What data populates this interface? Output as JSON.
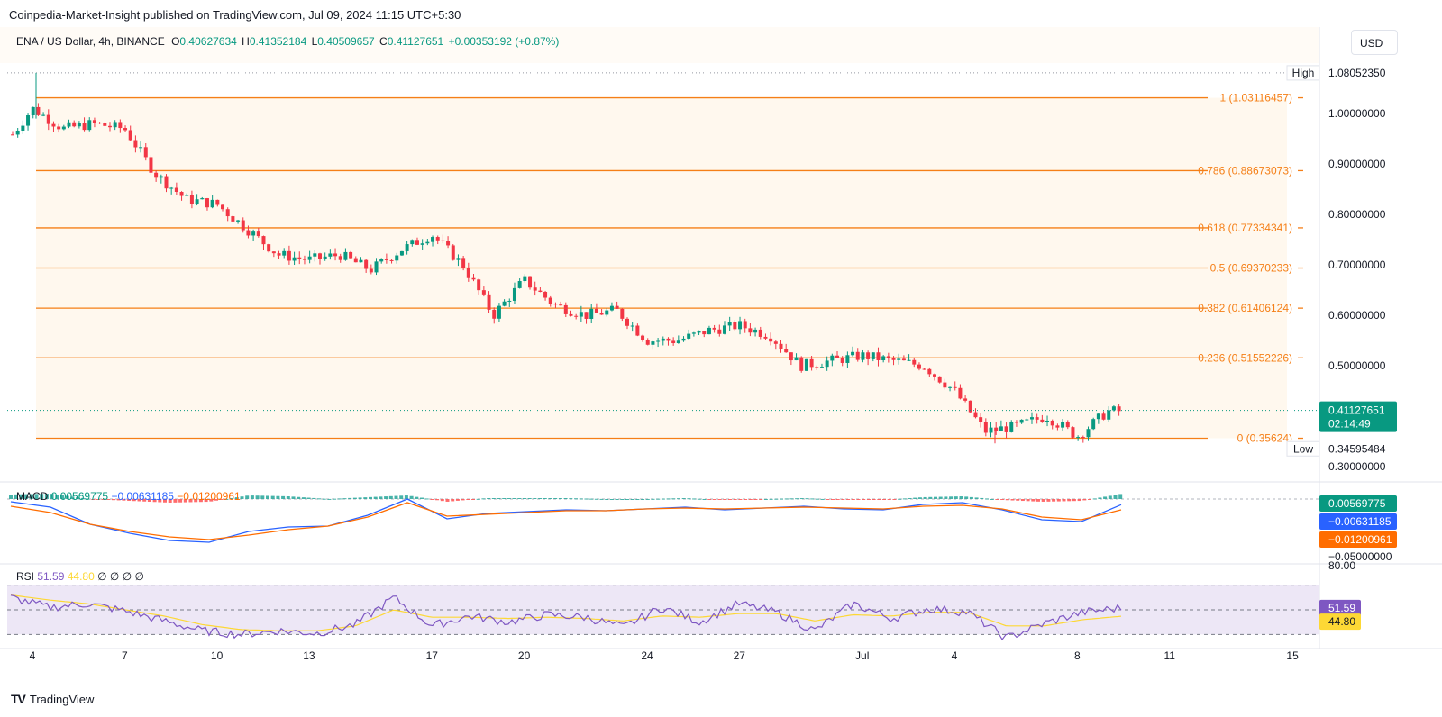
{
  "header": {
    "publisher": "Coinpedia-Market-Insight published on TradingView.com, Jul 09, 2024 11:15 UTC+5:30"
  },
  "legend": {
    "symbol": "ENA / US Dollar, 4h, BINANCE",
    "open_label": "O",
    "open": "0.40627634",
    "high_label": "H",
    "high": "0.41352184",
    "low_label": "L",
    "low": "0.40509657",
    "close_label": "C",
    "close": "0.41127651",
    "change": "+0.00353192 (+0.87%)"
  },
  "currency_button": "USD",
  "macd_legend": {
    "label": "MACD",
    "values": [
      "0.00569775",
      "−0.00631185",
      "−0.01200961"
    ]
  },
  "rsi_legend": {
    "label": "RSI",
    "values": [
      "51.59",
      "44.80",
      "∅",
      "∅",
      "∅",
      "∅"
    ]
  },
  "footer": {
    "brand": "TradingView"
  },
  "colors": {
    "up": "#089981",
    "down": "#f23645",
    "fib": "#f57f17",
    "fib_fill": "#fff8ee",
    "macd": "#2962ff",
    "signal": "#ff6d00",
    "rsi": "#7e57c2",
    "rsi_ma": "#fdd835",
    "rsi_band": "#ede7f6"
  },
  "chart_data": {
    "type": "candlestick",
    "title": "ENA / US Dollar, 4h, BINANCE",
    "x_ticks": [
      "4",
      "7",
      "10",
      "13",
      "17",
      "20",
      "24",
      "27",
      "Jul",
      "4",
      "8",
      "11",
      "15"
    ],
    "x_tick_dates": [
      "2024-06-04",
      "2024-06-07",
      "2024-06-10",
      "2024-06-13",
      "2024-06-17",
      "2024-06-20",
      "2024-06-24",
      "2024-06-27",
      "2024-07-01",
      "2024-07-04",
      "2024-07-08",
      "2024-07-11",
      "2024-07-15"
    ],
    "y_ticks": [
      "1.00000000",
      "0.90000000",
      "0.80000000",
      "0.70000000",
      "0.60000000",
      "0.50000000",
      "0.30000000"
    ],
    "ylim": [
      0.28,
      1.1
    ],
    "price_markers": {
      "high_label": "High",
      "high": "1.08052350",
      "low_label": "Low",
      "low": "0.34595484",
      "last": "0.41127651",
      "countdown": "02:14:49"
    },
    "fib_levels": [
      {
        "label": "1 (1.03116457)",
        "value": 1.03116457
      },
      {
        "label": "0.786 (0.88673073)",
        "value": 0.88673073
      },
      {
        "label": "0.618 (0.77334341)",
        "value": 0.77334341
      },
      {
        "label": "0.5 (0.69370233)",
        "value": 0.69370233
      },
      {
        "label": "0.382 (0.61406124)",
        "value": 0.61406124
      },
      {
        "label": "0.236 (0.51552226)",
        "value": 0.51552226
      },
      {
        "label": "0 (0.35624)",
        "value": 0.35624
      }
    ],
    "price_path": {
      "dates": [
        "2024-06-03",
        "2024-06-04",
        "2024-06-05",
        "2024-06-06",
        "2024-06-07",
        "2024-06-08",
        "2024-06-09",
        "2024-06-10",
        "2024-06-11",
        "2024-06-12",
        "2024-06-13",
        "2024-06-14",
        "2024-06-15",
        "2024-06-16",
        "2024-06-17",
        "2024-06-18",
        "2024-06-19",
        "2024-06-20",
        "2024-06-21",
        "2024-06-22",
        "2024-06-23",
        "2024-06-24",
        "2024-06-25",
        "2024-06-26",
        "2024-06-27",
        "2024-06-28",
        "2024-06-29",
        "2024-06-30",
        "2024-07-01",
        "2024-07-02",
        "2024-07-03",
        "2024-07-04",
        "2024-07-05",
        "2024-07-06",
        "2024-07-07",
        "2024-07-08",
        "2024-07-09"
      ],
      "values": [
        0.93,
        1.01,
        0.97,
        0.98,
        0.97,
        0.88,
        0.83,
        0.82,
        0.77,
        0.72,
        0.71,
        0.72,
        0.69,
        0.73,
        0.76,
        0.7,
        0.6,
        0.67,
        0.62,
        0.6,
        0.61,
        0.55,
        0.55,
        0.57,
        0.58,
        0.56,
        0.5,
        0.51,
        0.52,
        0.51,
        0.5,
        0.45,
        0.37,
        0.38,
        0.4,
        0.36,
        0.41
      ]
    },
    "macd": {
      "y_ticks": [
        "−0.05000000"
      ],
      "markers": [
        "0.00569775",
        "−0.00631185",
        "−0.01200961"
      ],
      "ylim": [
        -0.066,
        0.012
      ],
      "macd_line": [
        -0.003,
        -0.009,
        -0.028,
        -0.038,
        -0.046,
        -0.048,
        -0.036,
        -0.031,
        -0.03,
        -0.018,
        0.0,
        -0.022,
        -0.016,
        -0.014,
        -0.012,
        -0.013,
        -0.011,
        -0.009,
        -0.012,
        -0.01,
        -0.008,
        -0.011,
        -0.012,
        -0.006,
        -0.004,
        -0.012,
        -0.023,
        -0.025,
        -0.0063
      ],
      "signal_line": [
        -0.008,
        -0.015,
        -0.028,
        -0.036,
        -0.042,
        -0.045,
        -0.04,
        -0.034,
        -0.03,
        -0.02,
        -0.004,
        -0.019,
        -0.017,
        -0.015,
        -0.013,
        -0.013,
        -0.011,
        -0.01,
        -0.011,
        -0.01,
        -0.009,
        -0.01,
        -0.011,
        -0.008,
        -0.007,
        -0.011,
        -0.02,
        -0.023,
        -0.012
      ],
      "histogram": [
        0.005,
        0.006,
        0.0,
        -0.002,
        -0.004,
        -0.003,
        0.004,
        0.003,
        0.0,
        0.002,
        0.004,
        -0.003,
        0.001,
        0.001,
        0.001,
        0.0,
        0.0,
        0.001,
        -0.001,
        0.0,
        0.001,
        -0.001,
        -0.001,
        0.002,
        0.003,
        -0.001,
        -0.003,
        -0.002,
        0.0057
      ]
    },
    "rsi": {
      "y_ticks": [
        "80.00"
      ],
      "markers": [
        "51.59",
        "44.80"
      ],
      "ylim": [
        20,
        80
      ],
      "bands": [
        30,
        50,
        70
      ],
      "rsi_line": [
        60,
        52,
        55,
        49,
        41,
        33,
        30,
        33,
        31,
        38,
        60,
        37,
        45,
        40,
        46,
        44,
        36,
        52,
        40,
        55,
        48,
        33,
        55,
        43,
        51,
        48,
        27,
        39,
        48,
        51.59
      ],
      "rsi_ma": [
        62,
        58,
        55,
        50,
        45,
        38,
        34,
        33,
        33,
        37,
        50,
        44,
        44,
        43,
        44,
        43,
        41,
        45,
        44,
        47,
        47,
        41,
        46,
        45,
        48,
        48,
        37,
        37,
        42,
        44.8
      ]
    }
  }
}
